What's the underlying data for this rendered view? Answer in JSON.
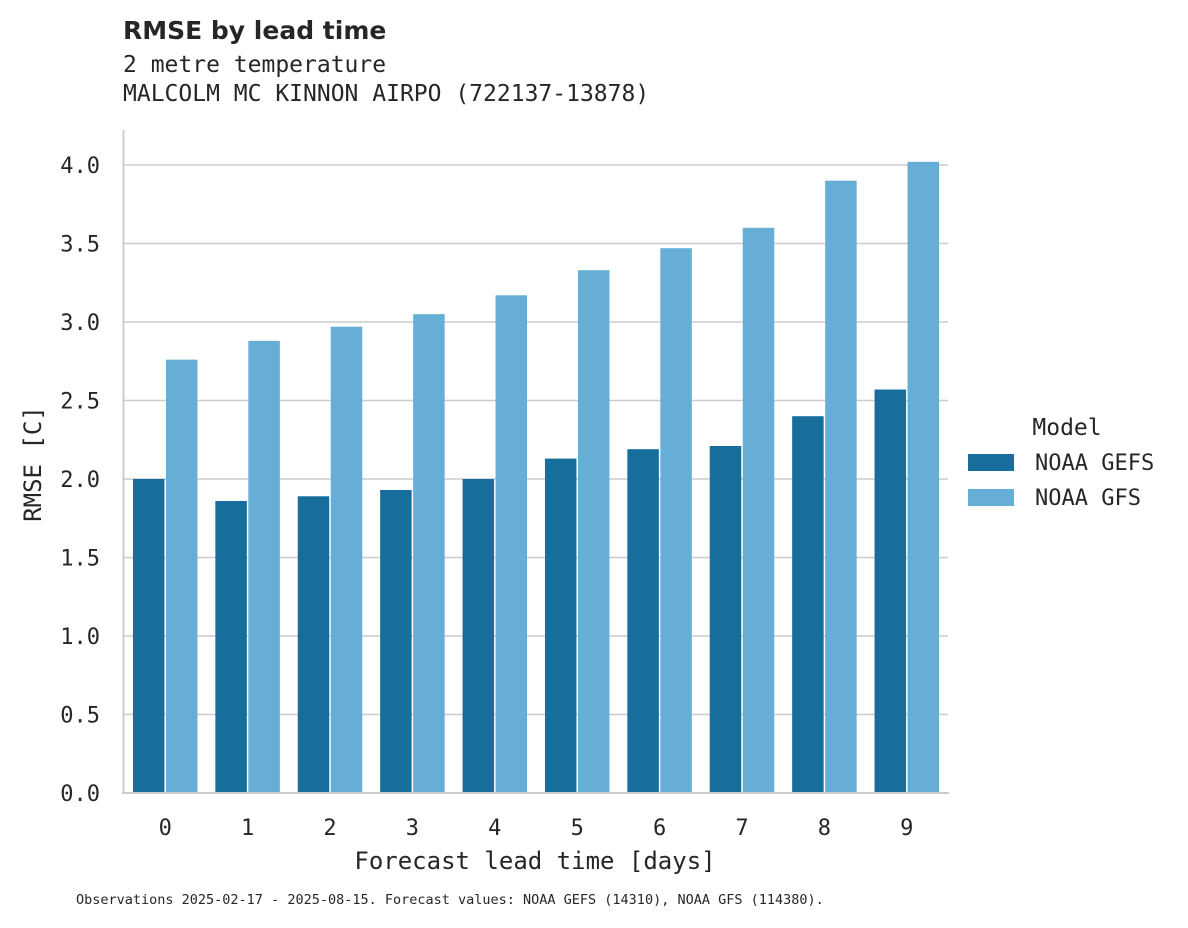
{
  "chart_data": {
    "type": "bar",
    "title": "RMSE by lead time",
    "subtitle_lines": [
      "2 metre temperature",
      "MALCOLM MC KINNON AIRPO (722137-13878)"
    ],
    "xlabel": "Forecast lead time [days]",
    "ylabel": "RMSE [C]",
    "categories": [
      "0",
      "1",
      "2",
      "3",
      "4",
      "5",
      "6",
      "7",
      "8",
      "9"
    ],
    "ylim": [
      0,
      4.2
    ],
    "yticks": [
      "0.0",
      "0.5",
      "1.0",
      "1.5",
      "2.0",
      "2.5",
      "3.0",
      "3.5",
      "4.0"
    ],
    "grid": "horizontal",
    "legend": {
      "title": "Model",
      "placement": "right"
    },
    "series": [
      {
        "name": "NOAA GEFS",
        "color": "#176d9c",
        "values": [
          2.0,
          1.86,
          1.89,
          1.93,
          2.0,
          2.13,
          2.19,
          2.21,
          2.4,
          2.57
        ]
      },
      {
        "name": "NOAA GFS",
        "color": "#66aed6",
        "values": [
          2.76,
          2.88,
          2.97,
          3.05,
          3.17,
          3.33,
          3.47,
          3.6,
          3.9,
          4.02
        ]
      }
    ],
    "footnote": "Observations 2025-02-17 - 2025-08-15. Forecast values: NOAA GEFS (14310), NOAA GFS (114380)."
  }
}
